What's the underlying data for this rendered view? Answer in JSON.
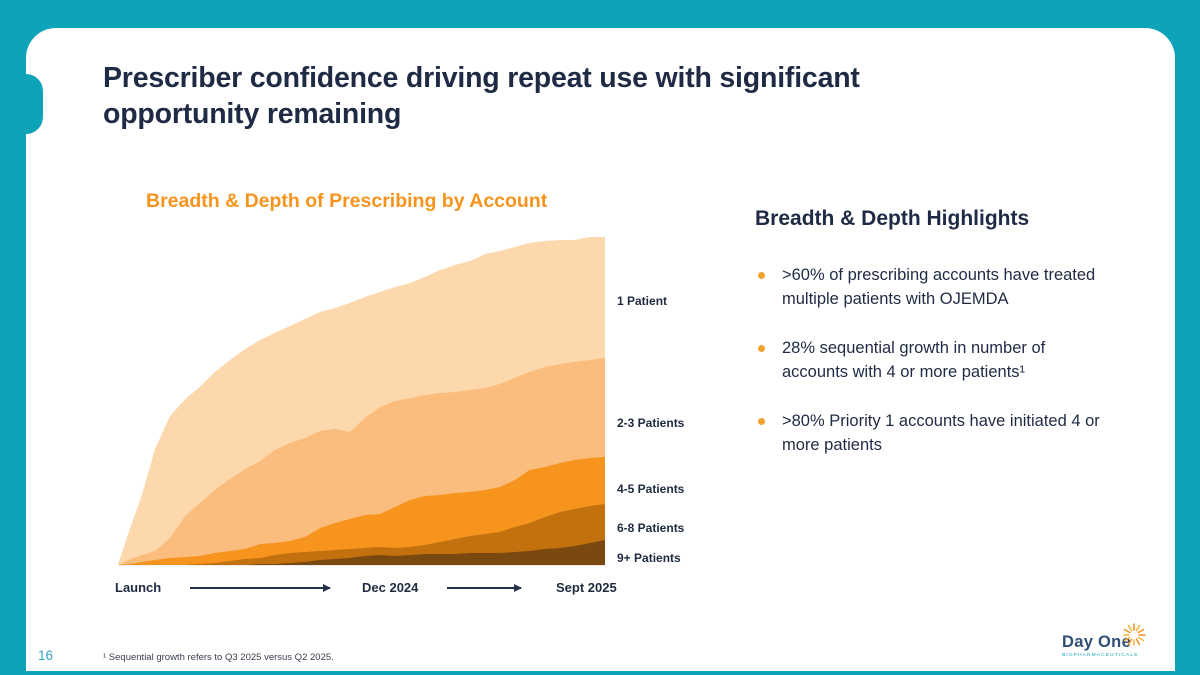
{
  "slide": {
    "title": "Prescriber confidence driving repeat use with significant opportunity remaining",
    "page_number": "16",
    "footnote": "¹ Sequential growth refers to Q3 2025 versus Q2 2025."
  },
  "chart_data": {
    "type": "area",
    "stacked": true,
    "title": "Breadth & Depth of Prescribing by Account",
    "x_axis_labels": [
      "Launch",
      "Dec 2024",
      "Sept 2025"
    ],
    "note": "x = percent of timeline from Launch (0) to Sept 2025 (100); no numeric y-axis shown in source — values are estimated relative account counts (arbitrary units) read from the figure",
    "grid": false,
    "legend_position": "right",
    "x": [
      0,
      2.5,
      4.9,
      7.6,
      10.7,
      13.8,
      16.8,
      19.9,
      23.0,
      26.1,
      29.2,
      32.2,
      35.3,
      38.4,
      41.5,
      44.6,
      47.6,
      50.7,
      53.8,
      56.9,
      60.0,
      63.0,
      66.1,
      69.2,
      72.3,
      75.4,
      78.4,
      81.5,
      84.5,
      87.7,
      90.8,
      93.8,
      96.9,
      100
    ],
    "series": [
      {
        "name": "1 Patient",
        "color": "#FCD8AC",
        "values": [
          0,
          31,
          60,
          102,
          122,
          117,
          116,
          118,
          119,
          120,
          121,
          117,
          117,
          119,
          119,
          121,
          129,
          121,
          115,
          114,
          115,
          118,
          123,
          127,
          129,
          134,
          133,
          131,
          129,
          126,
          124,
          122,
          123,
          121
        ]
      },
      {
        "name": "2-3 Patients",
        "color": "#FBBD7D",
        "values": [
          0,
          5,
          7,
          9,
          20,
          41,
          53,
          63,
          72,
          80,
          83,
          93,
          98,
          99,
          97,
          94,
          87,
          97,
          107,
          106,
          102,
          101,
          102,
          101,
          102,
          102,
          103,
          102,
          98,
          100,
          99,
          98,
          98,
          99
        ]
      },
      {
        "name": "4-5 Patients",
        "color": "#F7941E",
        "values": [
          0,
          1,
          3,
          5,
          7,
          8,
          8,
          10,
          10,
          10,
          14,
          12,
          12,
          15,
          23,
          27,
          30,
          33,
          33,
          41,
          47,
          49,
          47,
          46,
          44,
          44,
          45,
          47,
          53,
          50,
          49,
          49,
          48,
          47
        ]
      },
      {
        "name": "6-8 Patients",
        "color": "#C3700F",
        "values": [
          0,
          0,
          0,
          0,
          0,
          0,
          1,
          2,
          4,
          6,
          6,
          9,
          10,
          10,
          9,
          9,
          9,
          8,
          8,
          8,
          8,
          9,
          12,
          15,
          17,
          19,
          21,
          25,
          28,
          32,
          36,
          37,
          37,
          36
        ]
      },
      {
        "name": "9+ Patients",
        "color": "#7A490F",
        "values": [
          0,
          0,
          0,
          0,
          0,
          0,
          0,
          0,
          0,
          0,
          1,
          1,
          2,
          3,
          5,
          6,
          7,
          9,
          10,
          9,
          10,
          11,
          11,
          11,
          12,
          12,
          12,
          13,
          14,
          16,
          17,
          19,
          22,
          25
        ]
      }
    ]
  },
  "highlights": {
    "heading": "Breadth & Depth Highlights",
    "bullets": [
      ">60% of prescribing accounts have treated multiple patients with OJEMDA",
      "28% sequential growth in number of accounts with 4 or more patients¹",
      ">80% Priority 1 accounts have initiated 4 or more patients"
    ]
  },
  "logo": {
    "wordmark": "Day One",
    "subtext": "BIOPHARMACEUTICALS"
  },
  "colors": {
    "frame_teal": "#0DA3B8",
    "title_navy": "#1F2A44",
    "accent_orange": "#F7941D",
    "bullet_amber": "#F0A22E",
    "page_number_teal": "#2FA3C4"
  }
}
